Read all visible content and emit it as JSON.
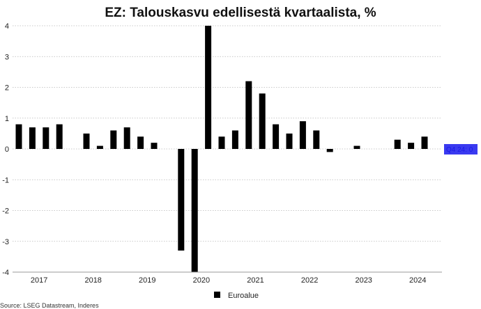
{
  "chart_data": {
    "type": "bar",
    "title": "EZ: Talouskasvu edellisestä kvartaalista, %",
    "source": "Source: LSEG Datastream, Inderes",
    "ylim": [
      -4,
      4
    ],
    "yticks": [
      -4,
      -3,
      -2,
      -1,
      0,
      1,
      2,
      3,
      4
    ],
    "grid": true,
    "legend_position": "bottom-center",
    "year_labels": [
      "2017",
      "2018",
      "2019",
      "2020",
      "2021",
      "2022",
      "2023",
      "2024"
    ],
    "series": [
      {
        "name": "Euroalue",
        "color": "#000000",
        "values": [
          0.8,
          0.7,
          0.7,
          0.8,
          0.0,
          0.5,
          0.1,
          0.6,
          0.7,
          0.4,
          0.2,
          0.0,
          -3.3,
          -4.0,
          4.0,
          0.4,
          0.6,
          2.2,
          1.8,
          0.8,
          0.5,
          0.9,
          0.6,
          -0.1,
          0.0,
          0.1,
          0.0,
          0.0,
          0.3,
          0.2,
          0.4,
          0.0
        ]
      }
    ],
    "last_value_label": {
      "text": "Q4 24: 0",
      "color": "#3a3af0"
    }
  }
}
